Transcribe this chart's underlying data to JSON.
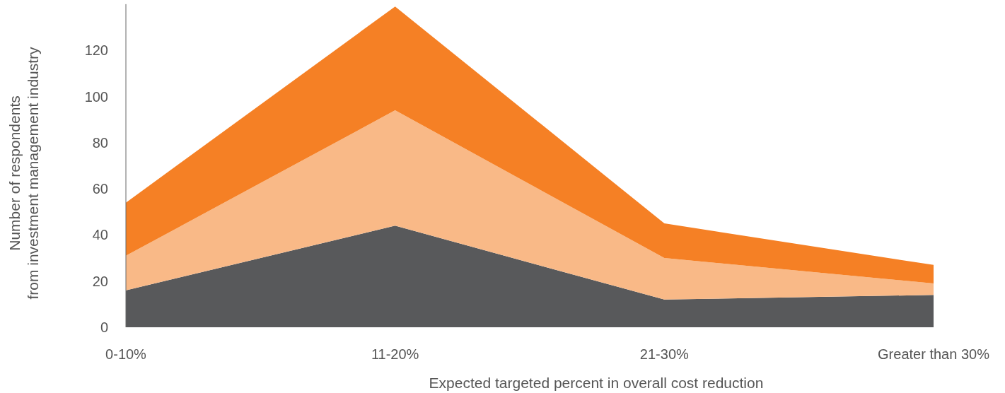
{
  "chart_data": {
    "type": "area",
    "stacked": true,
    "categories": [
      "0-10%",
      "11-20%",
      "21-30%",
      "Greater than 30%"
    ],
    "series": [
      {
        "color": "#58595b",
        "values": [
          16,
          44,
          12,
          14
        ]
      },
      {
        "color": "#f9b987",
        "values": [
          15,
          50,
          18,
          5
        ]
      },
      {
        "color": "#f58025",
        "values": [
          23,
          45,
          15,
          8
        ]
      }
    ],
    "xlabel": "Expected targeted percent in overall cost reduction",
    "ylabel": "Number of respondents from investment management industry",
    "ylim": [
      0,
      140
    ],
    "yticks": [
      0,
      20,
      40,
      60,
      80,
      100,
      120
    ],
    "grid": false
  }
}
